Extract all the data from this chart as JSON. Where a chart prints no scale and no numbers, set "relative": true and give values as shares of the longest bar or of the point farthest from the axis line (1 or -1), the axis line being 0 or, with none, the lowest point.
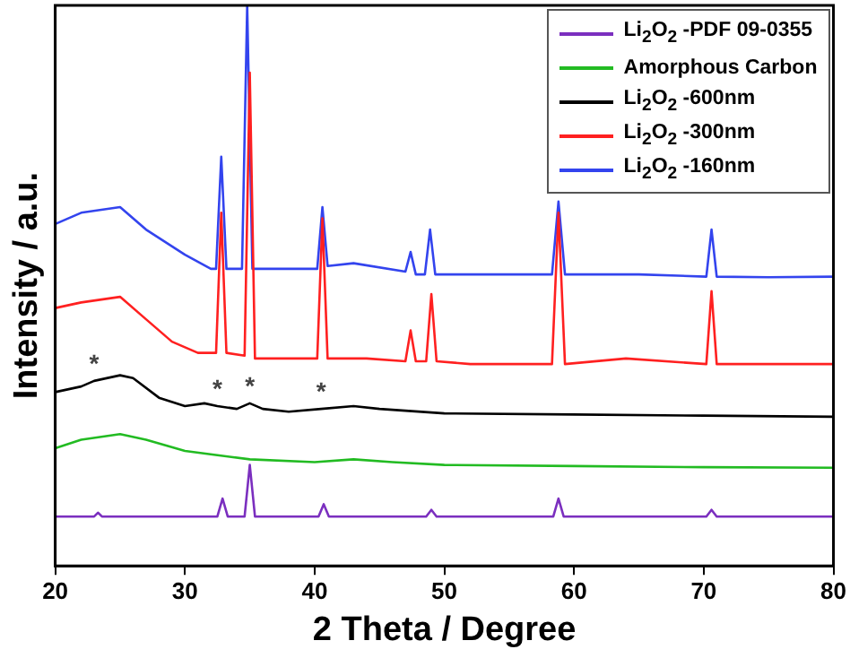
{
  "chart_data": {
    "type": "line",
    "relative": true,
    "xlabel": "2 Theta / Degree",
    "ylabel": "Intensity / a.u.",
    "xlim": [
      20,
      80
    ],
    "xticks": [
      20,
      30,
      40,
      50,
      60,
      70,
      80
    ],
    "legend": "top right",
    "marker": "none",
    "line_style": "solid",
    "grid": false,
    "series": [
      {
        "name": "Li$_{2}$O$_{2}$ -PDF 09-0355",
        "color": "#7b2fbf",
        "x": [
          20,
          23,
          23.3,
          23.6,
          32.5,
          32.9,
          33.3,
          34.6,
          35,
          35.4,
          40.3,
          40.7,
          41.1,
          48.6,
          49,
          49.4,
          58.4,
          58.8,
          59.2,
          70.2,
          70.6,
          71,
          80
        ],
        "values": [
          0.088,
          0.088,
          0.095,
          0.088,
          0.088,
          0.12,
          0.088,
          0.088,
          0.18,
          0.088,
          0.088,
          0.11,
          0.088,
          0.088,
          0.1,
          0.088,
          0.088,
          0.12,
          0.088,
          0.088,
          0.1,
          0.088,
          0.088
        ]
      },
      {
        "name": "Amorphous Carbon",
        "color": "#22bb22",
        "x": [
          20,
          22,
          25,
          27,
          30,
          35,
          40,
          43,
          46,
          50,
          60,
          70,
          80
        ],
        "values": [
          0.21,
          0.225,
          0.235,
          0.225,
          0.205,
          0.19,
          0.185,
          0.19,
          0.185,
          0.18,
          0.178,
          0.176,
          0.175
        ]
      },
      {
        "name": "Li$_{2}$O$_{2}$ -600nm",
        "color": "#000000",
        "x": [
          20,
          22,
          23,
          25,
          26,
          28,
          30,
          31.5,
          32.5,
          34,
          35,
          36,
          38,
          40.5,
          43,
          45,
          50,
          60,
          70,
          80
        ],
        "values": [
          0.31,
          0.32,
          0.33,
          0.34,
          0.335,
          0.3,
          0.285,
          0.29,
          0.285,
          0.28,
          0.29,
          0.28,
          0.275,
          0.28,
          0.285,
          0.28,
          0.272,
          0.27,
          0.268,
          0.266
        ]
      },
      {
        "name": "Li$_{2}$O$_{2}$ -300nm",
        "color": "#ff2020",
        "x": [
          20,
          22,
          25,
          27,
          29,
          31,
          32.4,
          32.8,
          33.2,
          34.6,
          35,
          35.4,
          37,
          40.2,
          40.6,
          41,
          44,
          47,
          47.4,
          47.8,
          48.6,
          49,
          49.4,
          52,
          58.3,
          58.8,
          59.3,
          64,
          70.2,
          70.6,
          71,
          75,
          80
        ],
        "values": [
          0.46,
          0.47,
          0.48,
          0.44,
          0.4,
          0.38,
          0.38,
          0.63,
          0.38,
          0.375,
          0.88,
          0.37,
          0.37,
          0.37,
          0.62,
          0.37,
          0.37,
          0.365,
          0.42,
          0.365,
          0.365,
          0.485,
          0.365,
          0.36,
          0.36,
          0.63,
          0.36,
          0.37,
          0.36,
          0.49,
          0.36,
          0.36,
          0.36
        ]
      },
      {
        "name": "Li$_{2}$O$_{2}$ -160nm",
        "color": "#3344ee",
        "x": [
          20,
          22,
          25,
          27,
          30,
          32,
          32.4,
          32.8,
          33.2,
          34.4,
          34.8,
          35.2,
          36,
          40.2,
          40.6,
          41,
          43,
          47,
          47.4,
          47.8,
          48.5,
          48.9,
          49.3,
          52,
          58.3,
          58.8,
          59.3,
          65,
          70.2,
          70.6,
          71,
          75,
          80
        ],
        "values": [
          0.61,
          0.63,
          0.64,
          0.6,
          0.555,
          0.53,
          0.53,
          0.73,
          0.53,
          0.53,
          1,
          0.53,
          0.53,
          0.53,
          0.64,
          0.535,
          0.54,
          0.525,
          0.56,
          0.52,
          0.52,
          0.6,
          0.52,
          0.52,
          0.52,
          0.65,
          0.52,
          0.52,
          0.516,
          0.6,
          0.516,
          0.515,
          0.516
        ]
      }
    ],
    "annotations": [
      {
        "text": "*",
        "x": 23,
        "y": 0.33
      },
      {
        "text": "*",
        "x": 32.5,
        "y": 0.285
      },
      {
        "text": "*",
        "x": 35,
        "y": 0.29
      },
      {
        "text": "*",
        "x": 40.5,
        "y": 0.28
      }
    ]
  }
}
